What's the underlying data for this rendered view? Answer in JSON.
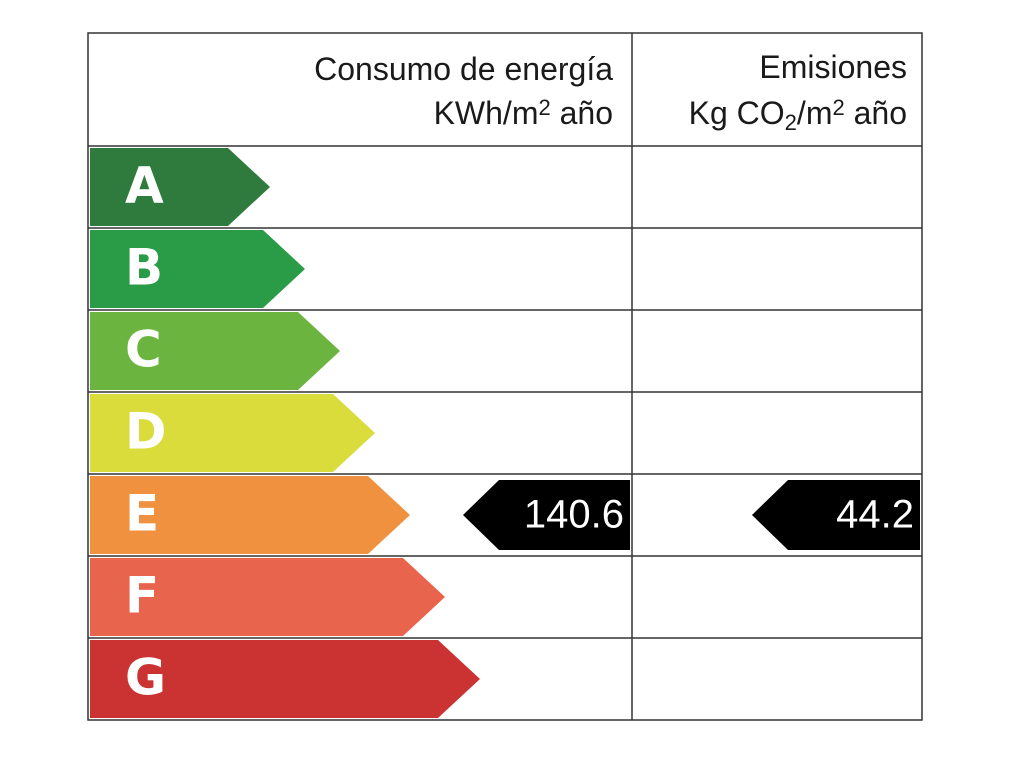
{
  "header": {
    "energy": {
      "title": "Consumo de energía",
      "unit": [
        "KWh/m",
        "2",
        " año"
      ]
    },
    "emissions": {
      "title": "Emisiones",
      "unit": [
        "Kg CO",
        "2",
        "/m",
        "2",
        " año"
      ]
    }
  },
  "ratings": [
    {
      "letter": "A",
      "color": "#2e7b3d"
    },
    {
      "letter": "B",
      "color": "#2a9b47"
    },
    {
      "letter": "C",
      "color": "#6bb43f"
    },
    {
      "letter": "D",
      "color": "#d9dc3b"
    },
    {
      "letter": "E",
      "color": "#f0913f",
      "energy": 140.6,
      "emissions": 44.2
    },
    {
      "letter": "F",
      "color": "#e9644c"
    },
    {
      "letter": "G",
      "color": "#cb3333"
    }
  ]
}
